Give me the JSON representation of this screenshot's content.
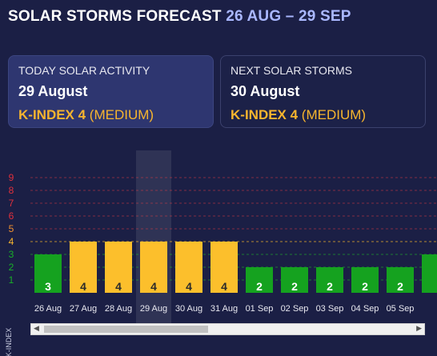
{
  "header": {
    "title": "SOLAR STORMS FORECAST",
    "range": "26 AUG – 29 SEP"
  },
  "today": {
    "label": "TODAY SOLAR ACTIVITY",
    "date": "29 August",
    "kindex": "K-INDEX 4",
    "level": " (MEDIUM)"
  },
  "next": {
    "label": "NEXT SOLAR STORMS",
    "date": "30 August",
    "kindex": "K-INDEX 4",
    "level": " (MEDIUM)"
  },
  "colors": {
    "background": "#1b1f45",
    "medium": "#fcbf2c",
    "low": "#15a21f",
    "accent": "#aab8ff"
  },
  "chart_data": {
    "type": "bar",
    "ylabel": "K-INDEX",
    "ylim": [
      0,
      9
    ],
    "yticks": [
      1,
      2,
      3,
      4,
      5,
      6,
      7,
      8,
      9
    ],
    "categories": [
      "26 Aug",
      "27 Aug",
      "28 Aug",
      "29 Aug",
      "30 Aug",
      "31 Aug",
      "01 Sep",
      "02 Sep",
      "03 Sep",
      "04 Sep",
      "05 Sep"
    ],
    "values": [
      3,
      4,
      4,
      4,
      4,
      4,
      2,
      2,
      2,
      2,
      2
    ],
    "partial_next_value": 3,
    "highlight_category": "29 Aug",
    "grid": true,
    "scrollable": true
  }
}
